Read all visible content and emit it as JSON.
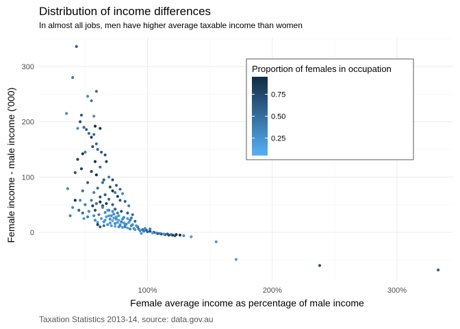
{
  "chart_data": {
    "type": "scatter",
    "title": "Distribution of income differences",
    "subtitle": "In almost all jobs, men have higher average taxable income than women",
    "caption": "Taxation Statistics 2013-14, source: data.gov.au",
    "xlabel": "Female average income as percentage of male income",
    "ylabel": "Female income - male income ('000)",
    "xlim": [
      0.13,
      3.45
    ],
    "ylim": [
      -88,
      352
    ],
    "x_ticks": [
      {
        "value": 1.0,
        "label": "100%"
      },
      {
        "value": 2.0,
        "label": "200%"
      },
      {
        "value": 3.0,
        "label": "300%"
      }
    ],
    "y_ticks": [
      {
        "value": 0,
        "label": "0"
      },
      {
        "value": 100,
        "label": "100"
      },
      {
        "value": 200,
        "label": "200"
      },
      {
        "value": 300,
        "label": "300"
      }
    ],
    "grid": true,
    "legend": {
      "title": "Proportion of females in occupation",
      "placement": "top-right",
      "range": [
        0.05,
        0.95
      ],
      "ticks": [
        {
          "value": 0.25,
          "label": "0.25"
        },
        {
          "value": 0.5,
          "label": "0.50"
        },
        {
          "value": 0.75,
          "label": "0.75"
        }
      ],
      "color_low": "#56B1F7",
      "color_high": "#132B43"
    },
    "points": [
      [
        0.43,
        336,
        0.6
      ],
      [
        0.35,
        215,
        0.3
      ],
      [
        0.4,
        280,
        0.4
      ],
      [
        0.59,
        255,
        0.5
      ],
      [
        0.52,
        246,
        0.3
      ],
      [
        0.55,
        238,
        0.4
      ],
      [
        0.57,
        210,
        0.3
      ],
      [
        0.55,
        172,
        0.8
      ],
      [
        0.49,
        190,
        0.5
      ],
      [
        0.47,
        212,
        0.6
      ],
      [
        0.44,
        188,
        0.3
      ],
      [
        0.46,
        200,
        0.7
      ],
      [
        0.51,
        186,
        0.6
      ],
      [
        0.53,
        179,
        0.5
      ],
      [
        0.57,
        177,
        0.5
      ],
      [
        0.58,
        192,
        0.9
      ],
      [
        0.59,
        160,
        0.5
      ],
      [
        0.62,
        188,
        0.9
      ],
      [
        0.48,
        142,
        0.9
      ],
      [
        0.56,
        155,
        0.7
      ],
      [
        0.5,
        145,
        0.4
      ],
      [
        0.6,
        150,
        0.5
      ],
      [
        0.63,
        145,
        0.6
      ],
      [
        0.66,
        140,
        0.7
      ],
      [
        0.44,
        132,
        0.8
      ],
      [
        0.58,
        128,
        0.9
      ],
      [
        0.47,
        115,
        0.8
      ],
      [
        0.42,
        108,
        0.7
      ],
      [
        0.55,
        110,
        0.8
      ],
      [
        0.62,
        118,
        0.5
      ],
      [
        0.67,
        128,
        0.8
      ],
      [
        0.59,
        104,
        0.9
      ],
      [
        0.36,
        79,
        0.3
      ],
      [
        0.69,
        100,
        0.4
      ],
      [
        0.65,
        95,
        0.6
      ],
      [
        0.72,
        95,
        0.7
      ],
      [
        0.64,
        90,
        0.5
      ],
      [
        0.52,
        90,
        0.6
      ],
      [
        0.75,
        85,
        0.6
      ],
      [
        0.7,
        82,
        0.7
      ],
      [
        0.6,
        80,
        0.5
      ],
      [
        0.78,
        78,
        0.5
      ],
      [
        0.72,
        75,
        0.9
      ],
      [
        0.57,
        72,
        0.4
      ],
      [
        0.74,
        72,
        0.4
      ],
      [
        0.8,
        70,
        0.3
      ],
      [
        0.48,
        75,
        0.5
      ],
      [
        0.66,
        68,
        0.6
      ],
      [
        0.62,
        64,
        0.7
      ],
      [
        0.76,
        65,
        0.8
      ],
      [
        0.42,
        58,
        0.9
      ],
      [
        0.46,
        58,
        0.3
      ],
      [
        0.55,
        58,
        0.4
      ],
      [
        0.69,
        60,
        0.5
      ],
      [
        0.78,
        58,
        0.6
      ],
      [
        0.82,
        56,
        0.6
      ],
      [
        0.4,
        45,
        0.3
      ],
      [
        0.5,
        50,
        0.4
      ],
      [
        0.59,
        52,
        0.5
      ],
      [
        0.64,
        48,
        0.7
      ],
      [
        0.72,
        50,
        0.6
      ],
      [
        0.85,
        48,
        0.4
      ],
      [
        0.38,
        30,
        0.4
      ],
      [
        0.45,
        40,
        0.6
      ],
      [
        0.53,
        38,
        0.3
      ],
      [
        0.57,
        30,
        0.3
      ],
      [
        0.52,
        28,
        0.4
      ],
      [
        0.49,
        25,
        0.2
      ],
      [
        0.48,
        35,
        0.5
      ],
      [
        0.61,
        32,
        0.4
      ],
      [
        0.66,
        36,
        0.3
      ],
      [
        0.69,
        40,
        0.5
      ],
      [
        0.74,
        42,
        0.6
      ],
      [
        0.79,
        38,
        0.7
      ],
      [
        0.84,
        35,
        0.6
      ],
      [
        0.88,
        32,
        0.5
      ],
      [
        0.58,
        22,
        0.3
      ],
      [
        0.63,
        25,
        0.2
      ],
      [
        0.67,
        28,
        0.2
      ],
      [
        0.71,
        30,
        0.3
      ],
      [
        0.75,
        28,
        0.2
      ],
      [
        0.8,
        24,
        0.3
      ],
      [
        0.86,
        22,
        0.4
      ],
      [
        0.9,
        20,
        0.5
      ],
      [
        0.6,
        18,
        0.2
      ],
      [
        0.65,
        19,
        0.3
      ],
      [
        0.7,
        17,
        0.2
      ],
      [
        0.74,
        16,
        0.3
      ],
      [
        0.78,
        14,
        0.2
      ],
      [
        0.82,
        13,
        0.3
      ],
      [
        0.87,
        12,
        0.4
      ],
      [
        0.92,
        10,
        0.5
      ],
      [
        0.64,
        45,
        0.3
      ],
      [
        0.68,
        40,
        0.2
      ],
      [
        0.72,
        38,
        0.3
      ],
      [
        0.76,
        35,
        0.4
      ],
      [
        0.66,
        22,
        0.2
      ],
      [
        0.7,
        24,
        0.3
      ],
      [
        0.72,
        21,
        0.1
      ],
      [
        0.73,
        26,
        0.2
      ],
      [
        0.75,
        24,
        0.3
      ],
      [
        0.76,
        18,
        0.2
      ],
      [
        0.77,
        22,
        0.1
      ],
      [
        0.79,
        19,
        0.4
      ],
      [
        0.81,
        17,
        0.2
      ],
      [
        0.83,
        15,
        0.3
      ],
      [
        0.85,
        18,
        0.2
      ],
      [
        0.88,
        14,
        0.3
      ],
      [
        0.71,
        12,
        0.2
      ],
      [
        0.74,
        11,
        0.1
      ],
      [
        0.77,
        10,
        0.3
      ],
      [
        0.8,
        9,
        0.2
      ],
      [
        0.84,
        8,
        0.1
      ],
      [
        0.89,
        7,
        0.3
      ],
      [
        0.93,
        6,
        0.4
      ],
      [
        0.96,
        5,
        0.5
      ],
      [
        0.99,
        4,
        0.6
      ],
      [
        1.02,
        2,
        0.7
      ],
      [
        1.05,
        0,
        0.7
      ],
      [
        1.08,
        -2,
        0.8
      ],
      [
        1.11,
        -3,
        0.8
      ],
      [
        1.14,
        -4,
        0.7
      ],
      [
        1.17,
        -5,
        0.8
      ],
      [
        1.2,
        -5,
        0.9
      ],
      [
        1.23,
        -4,
        0.9
      ],
      [
        1.26,
        -5,
        0.9
      ],
      [
        0.94,
        3,
        0.3
      ],
      [
        0.97,
        2,
        0.4
      ],
      [
        1.0,
        1,
        0.5
      ],
      [
        1.04,
        -1,
        0.2
      ],
      [
        1.07,
        -1,
        0.3
      ],
      [
        1.1,
        -2,
        0.4
      ],
      [
        1.13,
        -3,
        0.2
      ],
      [
        1.16,
        -3,
        0.6
      ],
      [
        1.19,
        -4,
        0.5
      ],
      [
        1.22,
        -6,
        0.7
      ],
      [
        0.9,
        5,
        0.2
      ],
      [
        0.86,
        6,
        0.3
      ],
      [
        0.82,
        10,
        0.4
      ],
      [
        0.78,
        12,
        0.3
      ],
      [
        0.69,
        30,
        0.2
      ],
      [
        0.73,
        33,
        0.3
      ],
      [
        0.77,
        30,
        0.2
      ],
      [
        0.81,
        27,
        0.3
      ],
      [
        0.84,
        25,
        0.2
      ],
      [
        0.87,
        26,
        0.4
      ],
      [
        0.68,
        14,
        0.3
      ],
      [
        0.65,
        12,
        0.5
      ],
      [
        0.62,
        10,
        0.6
      ],
      [
        0.6,
        14,
        0.8
      ],
      [
        0.58,
        40,
        0.7
      ],
      [
        0.56,
        48,
        0.8
      ],
      [
        0.62,
        55,
        0.9
      ],
      [
        0.67,
        52,
        0.8
      ],
      [
        1.35,
        -8,
        0.2
      ],
      [
        1.55,
        -17,
        0.2
      ],
      [
        1.71,
        -49,
        0.2
      ],
      [
        2.38,
        -60,
        0.7
      ],
      [
        3.33,
        -68,
        0.6
      ],
      [
        1.29,
        -6,
        0.3
      ],
      [
        0.95,
        -2,
        0.2
      ],
      [
        0.98,
        7,
        0.3
      ],
      [
        1.02,
        6,
        0.4
      ],
      [
        0.91,
        12,
        0.2
      ]
    ]
  }
}
